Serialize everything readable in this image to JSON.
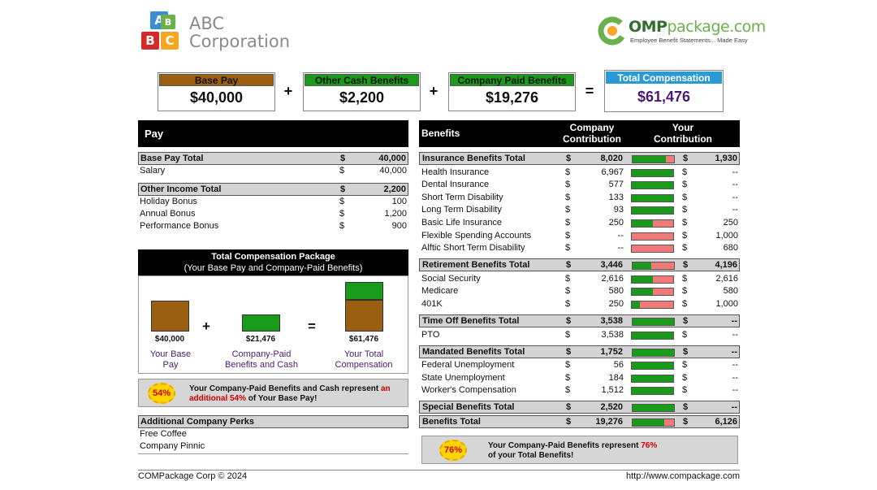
{
  "header": {
    "logo_letters": [
      "A",
      "B",
      "C",
      "B"
    ],
    "company_line1": "ABC",
    "company_line2": "Corporation",
    "brand_bold": "OMP",
    "brand_light": "package.com",
    "brand_c": "C",
    "tagline": "Employee Benefit Statements... Made Easy"
  },
  "summary": {
    "base_label": "Base Pay",
    "base_value": "$40,000",
    "other_label": "Other Cash Benefits",
    "other_value": "$2,200",
    "company_label": "Company Paid Benefits",
    "company_value": "$19,276",
    "total_label": "Total Compensation",
    "total_value": "$61,476",
    "plus": "+",
    "equals": "="
  },
  "pay": {
    "header": "Pay",
    "base_total": {
      "label": "Base Pay Total",
      "dollar": "$",
      "value": "40,000"
    },
    "base_items": [
      {
        "label": "Salary",
        "dollar": "$",
        "value": "40,000"
      }
    ],
    "other_total": {
      "label": "Other Income Total",
      "dollar": "$",
      "value": "2,200"
    },
    "other_items": [
      {
        "label": "Holiday Bonus",
        "dollar": "$",
        "value": "100"
      },
      {
        "label": "Annual Bonus",
        "dollar": "$",
        "value": "1,200"
      },
      {
        "label": "Performance Bonus",
        "dollar": "$",
        "value": "900"
      }
    ]
  },
  "package": {
    "title": "Total Compensation Package",
    "subtitle": "(Your Base Pay and Company-Paid Benefits)",
    "base_amount": "$40,000",
    "base_label1": "Your Base",
    "base_label2": "Pay",
    "benefits_amount": "$21,476",
    "benefits_label1": "Company-Paid",
    "benefits_label2": "Benefits and Cash",
    "total_amount": "$61,476",
    "total_label1": "Your Total",
    "total_label2": "Compensation",
    "plus": "+",
    "equals": "="
  },
  "callout1": {
    "badge": "54%",
    "text_a": "Your Company-Paid Benefits and Cash represent ",
    "text_red": "an additional 54%",
    "text_b": " of Your Base Pay!"
  },
  "perks": {
    "header": "Additional Company Perks",
    "items": [
      "Free Coffee",
      "Company Pinnic"
    ]
  },
  "benefits": {
    "header": "Benefits",
    "col_company1": "Company",
    "col_company2": "Contribution",
    "col_your1": "Your",
    "col_your2": "Contribution",
    "rows": [
      {
        "type": "total",
        "label": "Insurance Benefits Total",
        "company": "8,020",
        "employee": "1,930",
        "share": 0.81
      },
      {
        "type": "item",
        "label": "Health Insurance",
        "company": "6,967",
        "employee": "--",
        "share": 1.0
      },
      {
        "type": "item",
        "label": "Dental Insurance",
        "company": "577",
        "employee": "--",
        "share": 1.0
      },
      {
        "type": "item",
        "label": "Short Term Disability",
        "company": "133",
        "employee": "--",
        "share": 1.0
      },
      {
        "type": "item",
        "label": "Long Term Disability",
        "company": "93",
        "employee": "--",
        "share": 1.0
      },
      {
        "type": "item",
        "label": "Basic Life Insurance",
        "company": "250",
        "employee": "250",
        "share": 0.5
      },
      {
        "type": "item",
        "label": "Flexible Spending Accounts",
        "company": "--",
        "employee": "1,000",
        "share": 0.0
      },
      {
        "type": "item",
        "label": "Alftic Short Term Disability",
        "company": "--",
        "employee": "680",
        "share": 0.0
      },
      {
        "type": "gap"
      },
      {
        "type": "total",
        "label": "Retirement Benefits Total",
        "company": "3,446",
        "employee": "4,196",
        "share": 0.45
      },
      {
        "type": "item",
        "label": "Social Security",
        "company": "2,616",
        "employee": "2,616",
        "share": 0.5
      },
      {
        "type": "item",
        "label": "Medicare",
        "company": "580",
        "employee": "580",
        "share": 0.5
      },
      {
        "type": "item",
        "label": "401K",
        "company": "250",
        "employee": "1,000",
        "share": 0.2
      },
      {
        "type": "gap"
      },
      {
        "type": "total",
        "label": "Time Off Benefits Total",
        "company": "3,538",
        "employee": "--",
        "share": 1.0
      },
      {
        "type": "item",
        "label": "PTO",
        "company": "3,538",
        "employee": "--",
        "share": 1.0
      },
      {
        "type": "gap"
      },
      {
        "type": "total",
        "label": "Mandated Benefits Total",
        "company": "1,752",
        "employee": "--",
        "share": 1.0
      },
      {
        "type": "item",
        "label": "Federal Unemployment",
        "company": "56",
        "employee": "--",
        "share": 1.0
      },
      {
        "type": "item",
        "label": "State Unemployment",
        "company": "184",
        "employee": "--",
        "share": 1.0
      },
      {
        "type": "item",
        "label": "Worker's Compensation",
        "company": "1,512",
        "employee": "--",
        "share": 1.0
      },
      {
        "type": "gap"
      },
      {
        "type": "total",
        "label": "Special Benefits Total",
        "company": "2,520",
        "employee": "--",
        "share": 1.0
      },
      {
        "type": "total",
        "label": "Benefits Total",
        "company": "19,276",
        "employee": "6,126",
        "share": 0.76
      }
    ]
  },
  "callout2": {
    "badge": "76%",
    "text_a": "Your Company-Paid Benefits represent ",
    "text_red": "76%",
    "text_b": "of your Total Benefits!"
  },
  "footer": {
    "left": "COMPackage Corp © 2024",
    "right": "http://www.compackage.com"
  },
  "colors": {
    "base_brown": "#9a5f10",
    "green": "#1a9a1a",
    "blue": "#2a9ad6",
    "purple": "#4b1a6e",
    "red": "#cc0000"
  }
}
